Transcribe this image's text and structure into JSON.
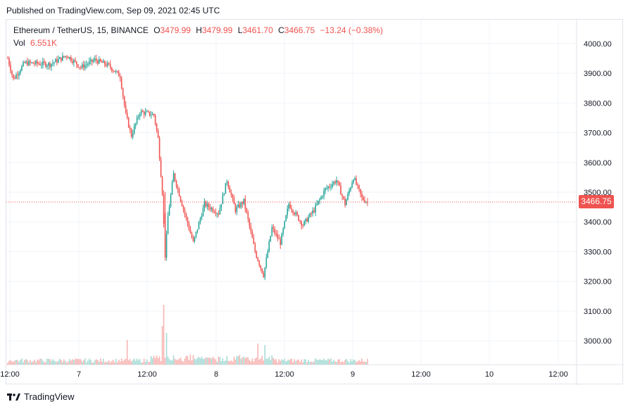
{
  "published": "Published on TradingView.com, Sep 09, 2021 02:45 UTC",
  "brand": "TradingView",
  "legend": {
    "symbol": "Ethereum / TetherUS, 15, BINANCE",
    "o_label": "O",
    "o_value": "3479.99",
    "h_label": "H",
    "h_value": "3479.99",
    "l_label": "L",
    "l_value": "3461.70",
    "c_label": "C",
    "c_value": "3466.75",
    "change": "−13.24 (−0.38%)",
    "vol_label": "Vol",
    "vol_value": "6.551K"
  },
  "last_price_label": "3466.75",
  "colors": {
    "up": "#26a69a",
    "down": "#ef5350",
    "grid": "#f0f3fa",
    "axis_text": "#131722"
  },
  "chart_data": {
    "type": "candlestick",
    "symbol": "ETH/USDT",
    "interval": "15",
    "exchange": "BINANCE",
    "ylim": [
      2920,
      4080
    ],
    "y_ticks": [
      "4000.00",
      "3900.00",
      "3800.00",
      "3700.00",
      "3600.00",
      "3500.00",
      "3400.00",
      "3300.00",
      "3200.00",
      "3100.00",
      "3000.00"
    ],
    "x_ticks": [
      "12:00",
      "7",
      "12:00",
      "8",
      "12:00",
      "9",
      "12:00",
      "10",
      "12:00"
    ],
    "last_price": 3466.75,
    "price_path": [
      {
        "t": 0,
        "p": 3950
      },
      {
        "t": 4,
        "p": 3880
      },
      {
        "t": 12,
        "p": 3935
      },
      {
        "t": 30,
        "p": 3930
      },
      {
        "t": 42,
        "p": 3960
      },
      {
        "t": 52,
        "p": 3920
      },
      {
        "t": 62,
        "p": 3945
      },
      {
        "t": 72,
        "p": 3925
      },
      {
        "t": 80,
        "p": 3890
      },
      {
        "t": 84,
        "p": 3760
      },
      {
        "t": 88,
        "p": 3690
      },
      {
        "t": 94,
        "p": 3770
      },
      {
        "t": 104,
        "p": 3760
      },
      {
        "t": 107,
        "p": 3680
      },
      {
        "t": 110,
        "p": 3500
      },
      {
        "t": 112,
        "p": 3280
      },
      {
        "t": 114,
        "p": 3420
      },
      {
        "t": 118,
        "p": 3560
      },
      {
        "t": 124,
        "p": 3460
      },
      {
        "t": 132,
        "p": 3330
      },
      {
        "t": 140,
        "p": 3460
      },
      {
        "t": 150,
        "p": 3430
      },
      {
        "t": 156,
        "p": 3540
      },
      {
        "t": 162,
        "p": 3440
      },
      {
        "t": 168,
        "p": 3470
      },
      {
        "t": 176,
        "p": 3300
      },
      {
        "t": 182,
        "p": 3220
      },
      {
        "t": 188,
        "p": 3380
      },
      {
        "t": 194,
        "p": 3330
      },
      {
        "t": 200,
        "p": 3460
      },
      {
        "t": 210,
        "p": 3390
      },
      {
        "t": 218,
        "p": 3440
      },
      {
        "t": 226,
        "p": 3510
      },
      {
        "t": 234,
        "p": 3540
      },
      {
        "t": 240,
        "p": 3460
      },
      {
        "t": 246,
        "p": 3550
      },
      {
        "t": 252,
        "p": 3480
      },
      {
        "t": 256,
        "p": 3466.75
      }
    ],
    "volume_spikes": [
      {
        "t": 85,
        "v": 0.35
      },
      {
        "t": 110,
        "v": 0.55
      },
      {
        "t": 111,
        "v": 0.85
      },
      {
        "t": 113,
        "v": 0.45
      },
      {
        "t": 178,
        "v": 0.3
      },
      {
        "t": 183,
        "v": 0.28
      }
    ]
  }
}
